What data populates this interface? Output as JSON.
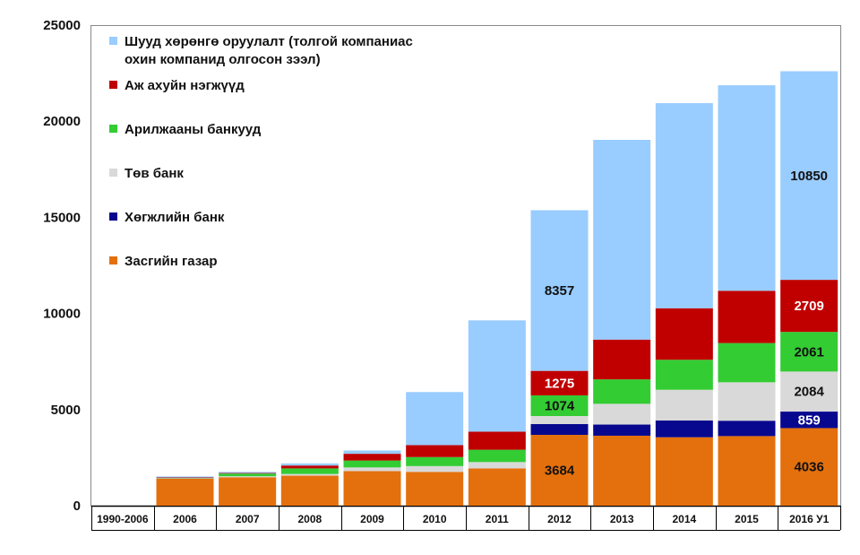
{
  "chart_data": {
    "type": "bar",
    "stacked": true,
    "categories": [
      "1990-2006",
      "2006",
      "2007",
      "2008",
      "2009",
      "2010",
      "2011",
      "2012",
      "2013",
      "2014",
      "2015",
      "2016 У1"
    ],
    "ylim": [
      0,
      25000
    ],
    "yticks": [
      "0",
      "5000",
      "10000",
      "15000",
      "20000",
      "25000"
    ],
    "legend_position": "top-left",
    "series": [
      {
        "name": "Засгийн газар",
        "color": "#E4700D",
        "values": [
          0,
          1400,
          1480,
          1560,
          1800,
          1760,
          1940,
          3684,
          3640,
          3560,
          3620,
          4036
        ]
      },
      {
        "name": "Хөгжлийн банк",
        "color": "#08088F",
        "values": [
          0,
          0,
          0,
          0,
          0,
          0,
          0,
          560,
          580,
          870,
          800,
          859
        ]
      },
      {
        "name": "Төв банк",
        "color": "#D9D9D9",
        "values": [
          0,
          20,
          50,
          90,
          190,
          300,
          330,
          420,
          1080,
          1600,
          2000,
          2084
        ]
      },
      {
        "name": "Арилжааны банкууд",
        "color": "#33CC33",
        "values": [
          0,
          20,
          140,
          290,
          360,
          470,
          640,
          1074,
          1270,
          1560,
          2040,
          2061
        ]
      },
      {
        "name": "Аж ахуйн нэгжүүд",
        "color": "#C00000",
        "values": [
          0,
          30,
          30,
          150,
          350,
          620,
          940,
          1275,
          2070,
          2680,
          2720,
          2709
        ]
      },
      {
        "name": "Шууд хөрөнгө оруулалт (толгой компаниас охин компанид олгосон зээл)",
        "color": "#99CCFF",
        "values": [
          0,
          50,
          60,
          110,
          170,
          2760,
          5790,
          8357,
          10390,
          10670,
          10690,
          10850
        ]
      }
    ],
    "data_labels": [
      {
        "category": "2012",
        "series": "Засгийн газар",
        "text": "3684",
        "color": "#111111"
      },
      {
        "category": "2012",
        "series": "Арилжааны банкууд",
        "text": "1074",
        "color": "#111111"
      },
      {
        "category": "2012",
        "series": "Аж ахуйн нэгжүүд",
        "text": "1275",
        "color": "#ffffff"
      },
      {
        "category": "2012",
        "series": "Шууд хөрөнгө оруулалт (толгой компаниас охин компанид олгосон зээл)",
        "text": "8357",
        "color": "#111111"
      },
      {
        "category": "2016 У1",
        "series": "Засгийн газар",
        "text": "4036",
        "color": "#111111"
      },
      {
        "category": "2016 У1",
        "series": "Хөгжлийн банк",
        "text": "859",
        "color": "#ffffff"
      },
      {
        "category": "2016 У1",
        "series": "Төв банк",
        "text": "2084",
        "color": "#111111"
      },
      {
        "category": "2016 У1",
        "series": "Арилжааны банкууд",
        "text": "2061",
        "color": "#111111"
      },
      {
        "category": "2016 У1",
        "series": "Аж ахуйн нэгжүүд",
        "text": "2709",
        "color": "#ffffff"
      },
      {
        "category": "2016 У1",
        "series": "Шууд хөрөнгө оруулалт (толгой компаниас охин компанид олгосон зээл)",
        "text": "10850",
        "color": "#111111"
      }
    ],
    "legend": [
      {
        "series": "Шууд хөрөнгө оруулалт (толгой компаниас охин компанид олгосон зээл)",
        "lines": [
          "Шууд хөрөнгө оруулалт (толгой компаниас",
          "охин компанид олгосон зээл)"
        ],
        "color": "#99CCFF"
      },
      {
        "series": "Аж ахуйн нэгжүүд",
        "lines": [
          "Аж ахуйн нэгжүүд"
        ],
        "color": "#C00000"
      },
      {
        "series": "Арилжааны банкууд",
        "lines": [
          "Арилжааны банкууд"
        ],
        "color": "#33CC33"
      },
      {
        "series": "Төв банк",
        "lines": [
          "Төв банк"
        ],
        "color": "#D9D9D9"
      },
      {
        "series": "Хөгжлийн банк",
        "lines": [
          "Хөгжлийн банк"
        ],
        "color": "#08088F"
      },
      {
        "series": "Засгийн газар",
        "lines": [
          "Засгийн газар"
        ],
        "color": "#E4700D"
      }
    ]
  }
}
